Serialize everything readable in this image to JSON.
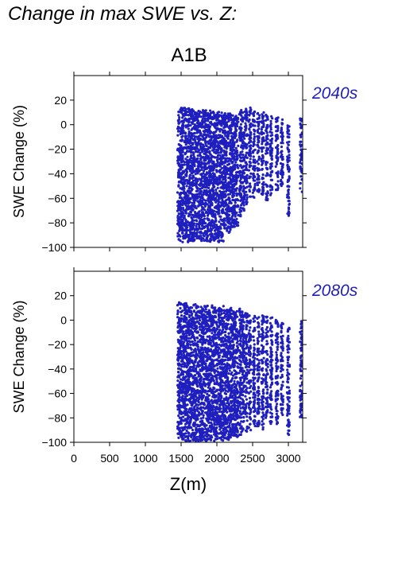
{
  "page_title": "Change in max SWE vs. Z:",
  "scenario_title": "A1B",
  "colors": {
    "points": "#1f1fbf",
    "axis": "#000000",
    "period_label": "#1f1fbf"
  },
  "chart_data": [
    {
      "type": "scatter",
      "title": "",
      "period_label": "2040s",
      "xlabel": "",
      "ylabel": "SWE Change (%)",
      "xlim": [
        0,
        3200
      ],
      "ylim": [
        -100,
        40
      ],
      "yticks": [
        20,
        0,
        -20,
        -40,
        -60,
        -80,
        -100
      ],
      "xtick_positions": [
        0,
        500,
        1000,
        1500,
        2000,
        2500,
        3000
      ],
      "show_x_tick_labels": false,
      "grid": false,
      "series": [
        {
          "color": "#1f1fbf",
          "elevation_bands": [
            {
              "x": [
                1450,
                1500
              ],
              "y_min": -95,
              "y_max": 15
            },
            {
              "x": [
                1500,
                1700
              ],
              "y_min": -96,
              "y_max": 14
            },
            {
              "x": [
                1700,
                1900
              ],
              "y_min": -95,
              "y_max": 12
            },
            {
              "x": [
                1900,
                2100
              ],
              "y_min": -96,
              "y_max": 12
            },
            {
              "x": [
                2100,
                2200
              ],
              "y_min": -88,
              "y_max": 10
            },
            {
              "x": [
                2200,
                2300
              ],
              "y_min": -85,
              "y_max": 8
            }
          ],
          "elevation_columns": [
            {
              "x": 2330,
              "y_min": -75,
              "y_max": 12
            },
            {
              "x": 2370,
              "y_min": -70,
              "y_max": 10
            },
            {
              "x": 2410,
              "y_min": -65,
              "y_max": 13
            },
            {
              "x": 2460,
              "y_min": -60,
              "y_max": 14
            },
            {
              "x": 2520,
              "y_min": -60,
              "y_max": 12
            },
            {
              "x": 2580,
              "y_min": -55,
              "y_max": 10
            },
            {
              "x": 2640,
              "y_min": -58,
              "y_max": 10
            },
            {
              "x": 2700,
              "y_min": -62,
              "y_max": 8
            },
            {
              "x": 2760,
              "y_min": -58,
              "y_max": 8
            },
            {
              "x": 2840,
              "y_min": -55,
              "y_max": 6
            },
            {
              "x": 2910,
              "y_min": -50,
              "y_max": 5
            },
            {
              "x": 3000,
              "y_min": -75,
              "y_max": 0
            },
            {
              "x": 3180,
              "y_min": -55,
              "y_max": 5
            }
          ]
        }
      ]
    },
    {
      "type": "scatter",
      "title": "",
      "period_label": "2080s",
      "xlabel": "Z(m)",
      "ylabel": "SWE Change (%)",
      "xlim": [
        0,
        3200
      ],
      "ylim": [
        -100,
        40
      ],
      "yticks": [
        20,
        0,
        -20,
        -40,
        -60,
        -80,
        -100
      ],
      "xticks": [
        0,
        500,
        1000,
        1500,
        2000,
        2500,
        3000
      ],
      "xtick_labels": [
        "0",
        "500",
        "1000",
        "1500",
        "2000",
        "2500",
        "3000"
      ],
      "show_x_tick_labels": true,
      "grid": false,
      "series": [
        {
          "color": "#1f1fbf",
          "elevation_bands": [
            {
              "x": [
                1450,
                1500
              ],
              "y_min": -97,
              "y_max": 16
            },
            {
              "x": [
                1500,
                1700
              ],
              "y_min": -99,
              "y_max": 14
            },
            {
              "x": [
                1700,
                1900
              ],
              "y_min": -99,
              "y_max": 12
            },
            {
              "x": [
                1900,
                2100
              ],
              "y_min": -99,
              "y_max": 12
            },
            {
              "x": [
                2100,
                2200
              ],
              "y_min": -98,
              "y_max": 10
            },
            {
              "x": [
                2200,
                2300
              ],
              "y_min": -96,
              "y_max": 8
            }
          ],
          "elevation_columns": [
            {
              "x": 2330,
              "y_min": -95,
              "y_max": 10
            },
            {
              "x": 2370,
              "y_min": -93,
              "y_max": 8
            },
            {
              "x": 2410,
              "y_min": -92,
              "y_max": 8
            },
            {
              "x": 2460,
              "y_min": -90,
              "y_max": 5
            },
            {
              "x": 2520,
              "y_min": -88,
              "y_max": 5
            },
            {
              "x": 2580,
              "y_min": -88,
              "y_max": 4
            },
            {
              "x": 2640,
              "y_min": -90,
              "y_max": 4
            },
            {
              "x": 2700,
              "y_min": -80,
              "y_max": 3
            },
            {
              "x": 2760,
              "y_min": -85,
              "y_max": 3
            },
            {
              "x": 2840,
              "y_min": -85,
              "y_max": 0
            },
            {
              "x": 2910,
              "y_min": -78,
              "y_max": -2
            },
            {
              "x": 3000,
              "y_min": -95,
              "y_max": -5
            },
            {
              "x": 3180,
              "y_min": -80,
              "y_max": 0
            }
          ]
        }
      ]
    }
  ]
}
